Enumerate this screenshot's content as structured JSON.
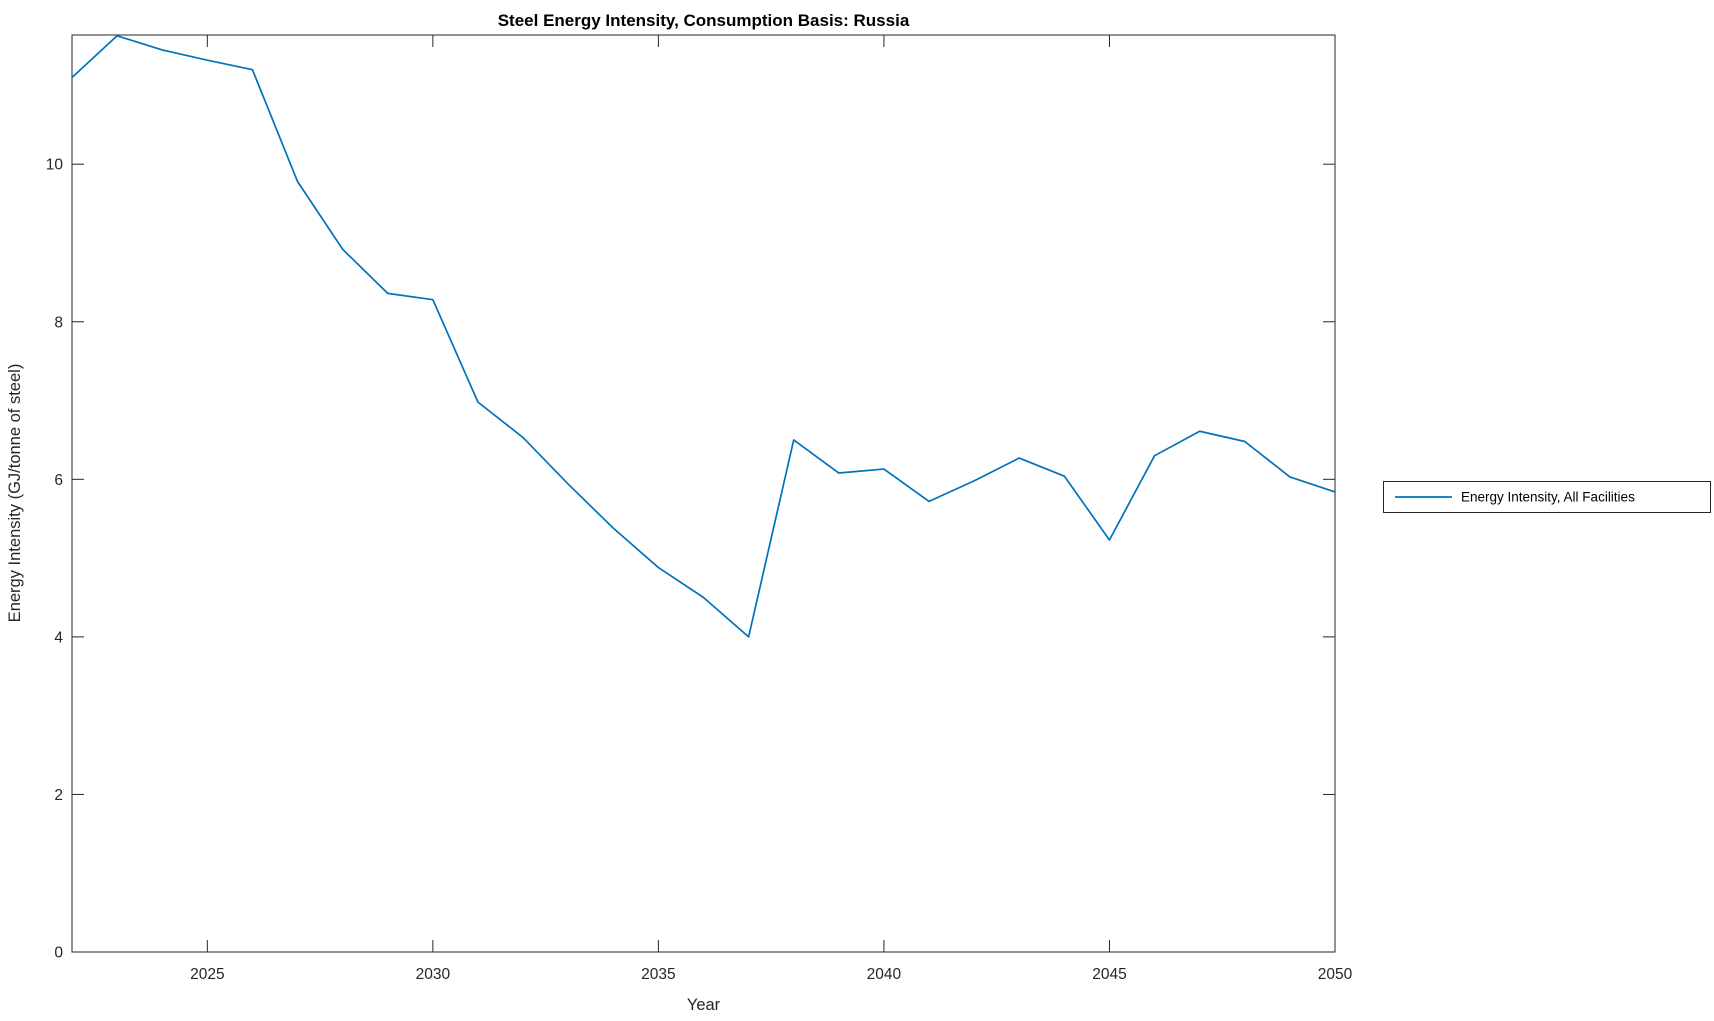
{
  "title": "Steel Energy Intensity, Consumption Basis: Russia",
  "legend": {
    "label": "Energy Intensity, All Facilities"
  },
  "colors": {
    "line": "#0072BD",
    "axis": "#262626",
    "title": "#000000",
    "background": "#ffffff"
  },
  "chart_data": {
    "type": "line",
    "title": "Steel Energy Intensity, Consumption Basis: Russia",
    "xlabel": "Year",
    "ylabel": "Energy Intensity (GJ/tonne of steel)",
    "legend": [
      "Energy Intensity, All Facilities"
    ],
    "legend_position": "outside-right",
    "grid": false,
    "line_color": "#0072BD",
    "xlim": [
      2022,
      2050
    ],
    "ylim": [
      0,
      11.64
    ],
    "xticks": [
      2025,
      2030,
      2035,
      2040,
      2045,
      2050
    ],
    "yticks": [
      0,
      2,
      4,
      6,
      8,
      10
    ],
    "x": [
      2022,
      2023,
      2024,
      2025,
      2026,
      2027,
      2028,
      2029,
      2030,
      2031,
      2032,
      2033,
      2034,
      2035,
      2036,
      2037,
      2038,
      2039,
      2040,
      2041,
      2042,
      2043,
      2044,
      2045,
      2046,
      2047,
      2048,
      2049,
      2050
    ],
    "y": [
      11.1,
      11.63,
      11.45,
      11.32,
      11.2,
      9.78,
      8.92,
      8.36,
      8.28,
      6.98,
      6.53,
      5.94,
      5.38,
      4.88,
      4.5,
      4.0,
      6.5,
      6.08,
      6.13,
      5.72,
      5.98,
      6.27,
      6.04,
      5.23,
      6.3,
      6.61,
      6.48,
      6.03,
      5.84
    ]
  }
}
